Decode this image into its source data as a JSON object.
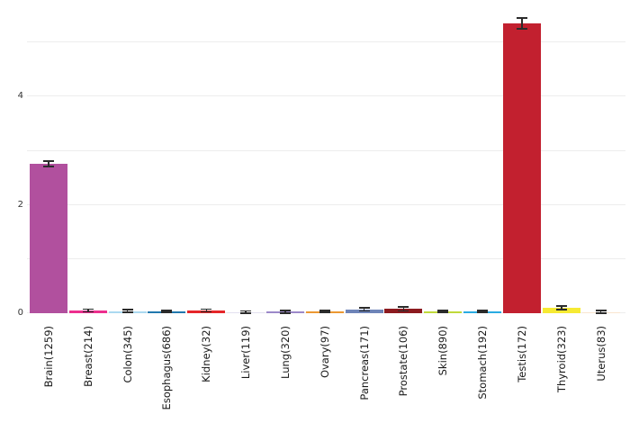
{
  "chart_data": {
    "type": "bar",
    "title": "",
    "xlabel": "",
    "ylabel": "",
    "categories": [
      "Brain(1259)",
      "Breast(214)",
      "Colon(345)",
      "Esophagus(686)",
      "Kidney(32)",
      "Liver(119)",
      "Lung(320)",
      "Ovary(97)",
      "Pancreas(171)",
      "Prostate(106)",
      "Skin(890)",
      "Stomach(192)",
      "Testis(172)",
      "Thyroid(323)",
      "Uterus(83)"
    ],
    "values": [
      2.76,
      0.05,
      0.04,
      0.03,
      0.05,
      0.02,
      0.03,
      0.03,
      0.07,
      0.08,
      0.035,
      0.03,
      5.36,
      0.1,
      0.02
    ],
    "errors": [
      0.05,
      0.025,
      0.03,
      0.02,
      0.025,
      0.02,
      0.025,
      0.02,
      0.03,
      0.04,
      0.015,
      0.02,
      0.1,
      0.03,
      0.025
    ],
    "bar_colors": [
      "#b1509e",
      "#ed2e8e",
      "#abd9f0",
      "#2178ae",
      "#e52629",
      "#e3e0f0",
      "#9c89c9",
      "#ec9832",
      "#6e84b8",
      "#8c1a1f",
      "#c0d93a",
      "#29abe2",
      "#c2202f",
      "#f6ea33",
      "#fae5d0"
    ],
    "error_bar_color": "#2b2b2b",
    "background_color": "#ffffff",
    "gridline_color": "#ededed",
    "ylim": [
      0,
      5.62
    ],
    "ytick_labels": [
      "0",
      "2",
      "4"
    ],
    "ytick_values": [
      0,
      2,
      4
    ],
    "gridline_values": [
      0,
      1,
      2,
      3,
      4,
      5
    ],
    "grid": true,
    "legend": "none",
    "x_label_rotation_degrees": 90
  }
}
